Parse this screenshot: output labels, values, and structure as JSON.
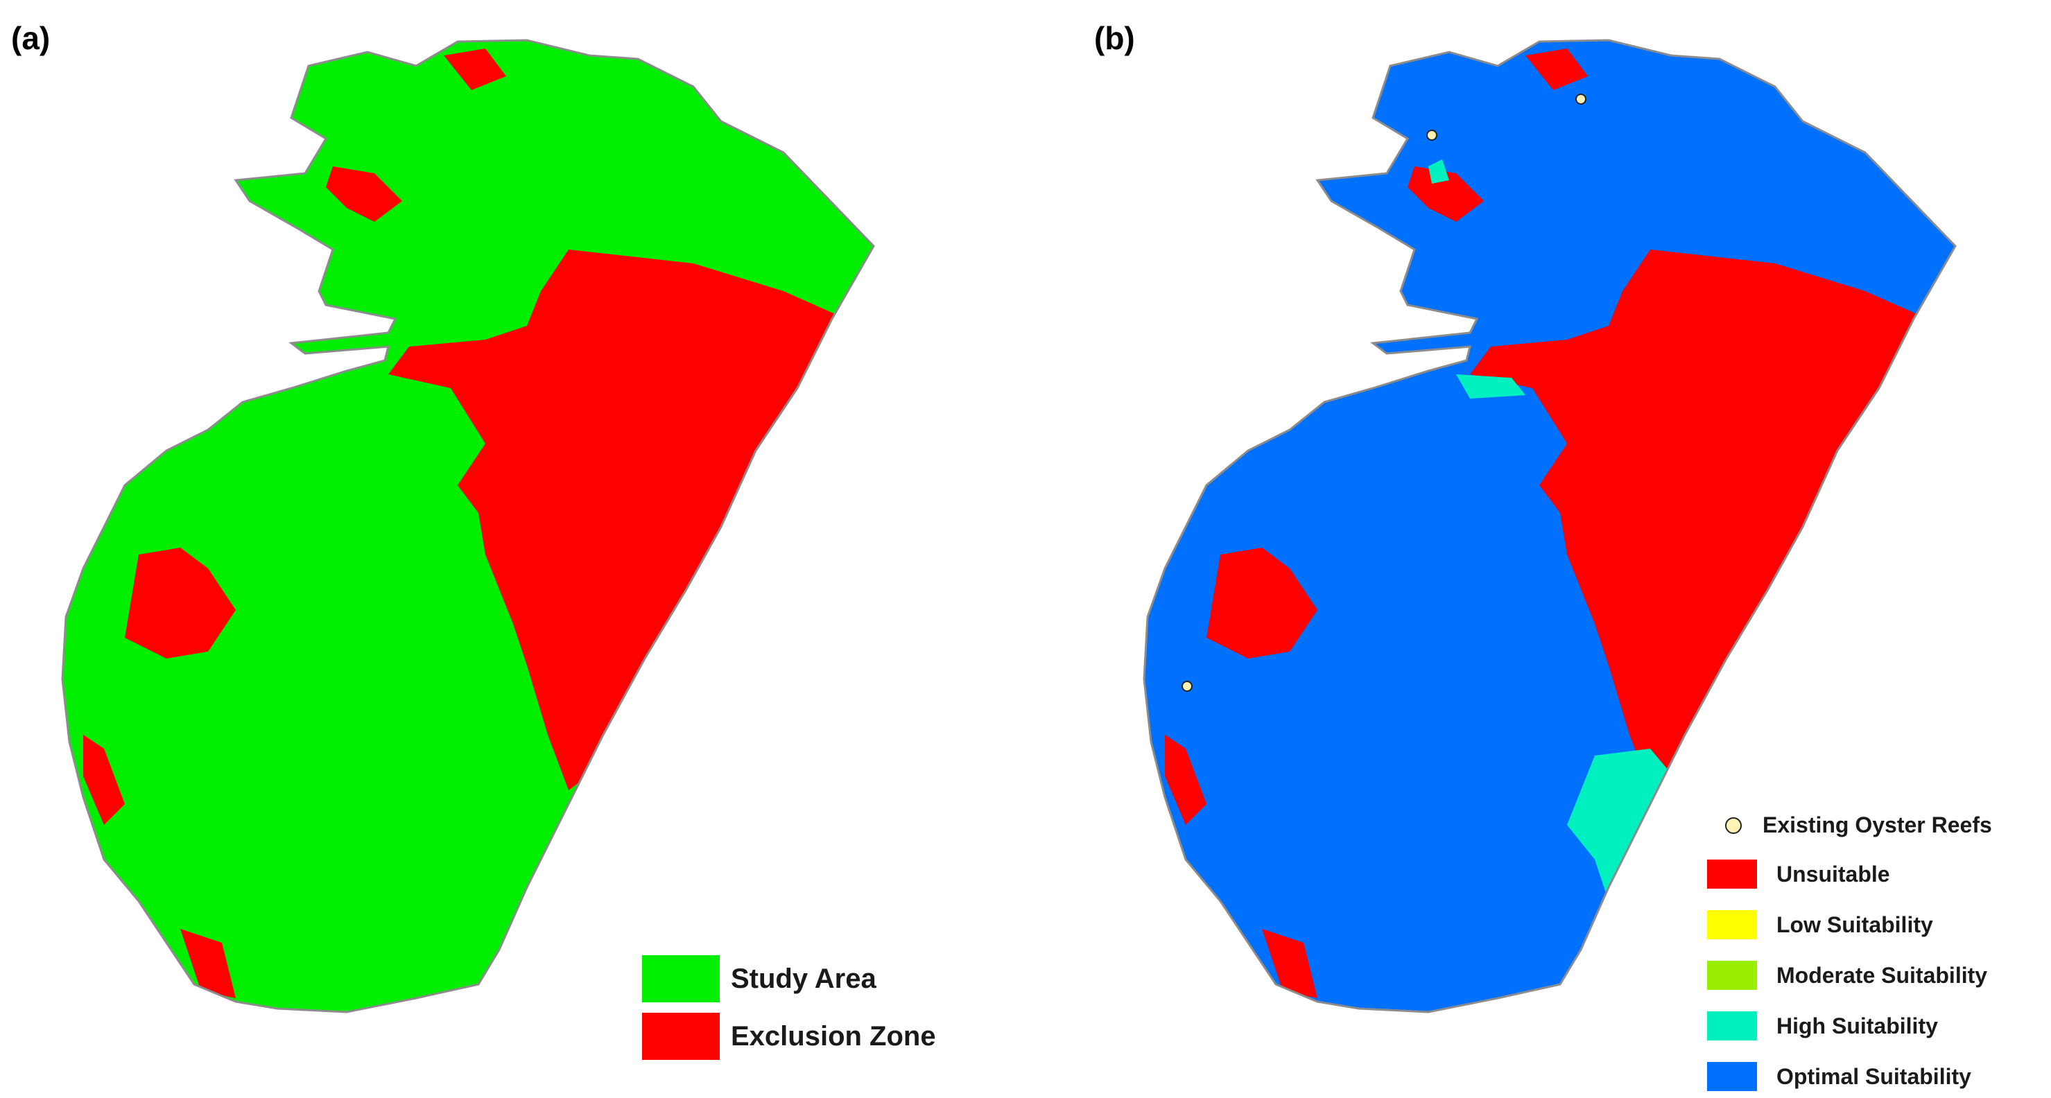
{
  "panel_a": {
    "label": "(a)",
    "legend": [
      {
        "label": "Study Area",
        "color": "#00ee00"
      },
      {
        "label": "Exclusion Zone",
        "color": "#ff0000"
      }
    ]
  },
  "panel_b": {
    "label": "(b)",
    "legend": {
      "reefs": {
        "label": "Existing Oyster Reefs",
        "color": "#fff3b5"
      },
      "classes": [
        {
          "label": "Unsuitable",
          "color": "#ff0000"
        },
        {
          "label": "Low Suitability",
          "color": "#ffff00"
        },
        {
          "label": "Moderate Suitability",
          "color": "#9aee00"
        },
        {
          "label": "High Suitability",
          "color": "#00f0c0"
        },
        {
          "label": "Optimal Suitability",
          "color": "#0070ff"
        }
      ]
    }
  },
  "colors": {
    "outline": "#8c8c8c",
    "study": "#00ee00",
    "exclusion": "#ff0000",
    "optimal": "#0070ff",
    "high": "#00f0c0",
    "reef": "#fff3b5"
  }
}
